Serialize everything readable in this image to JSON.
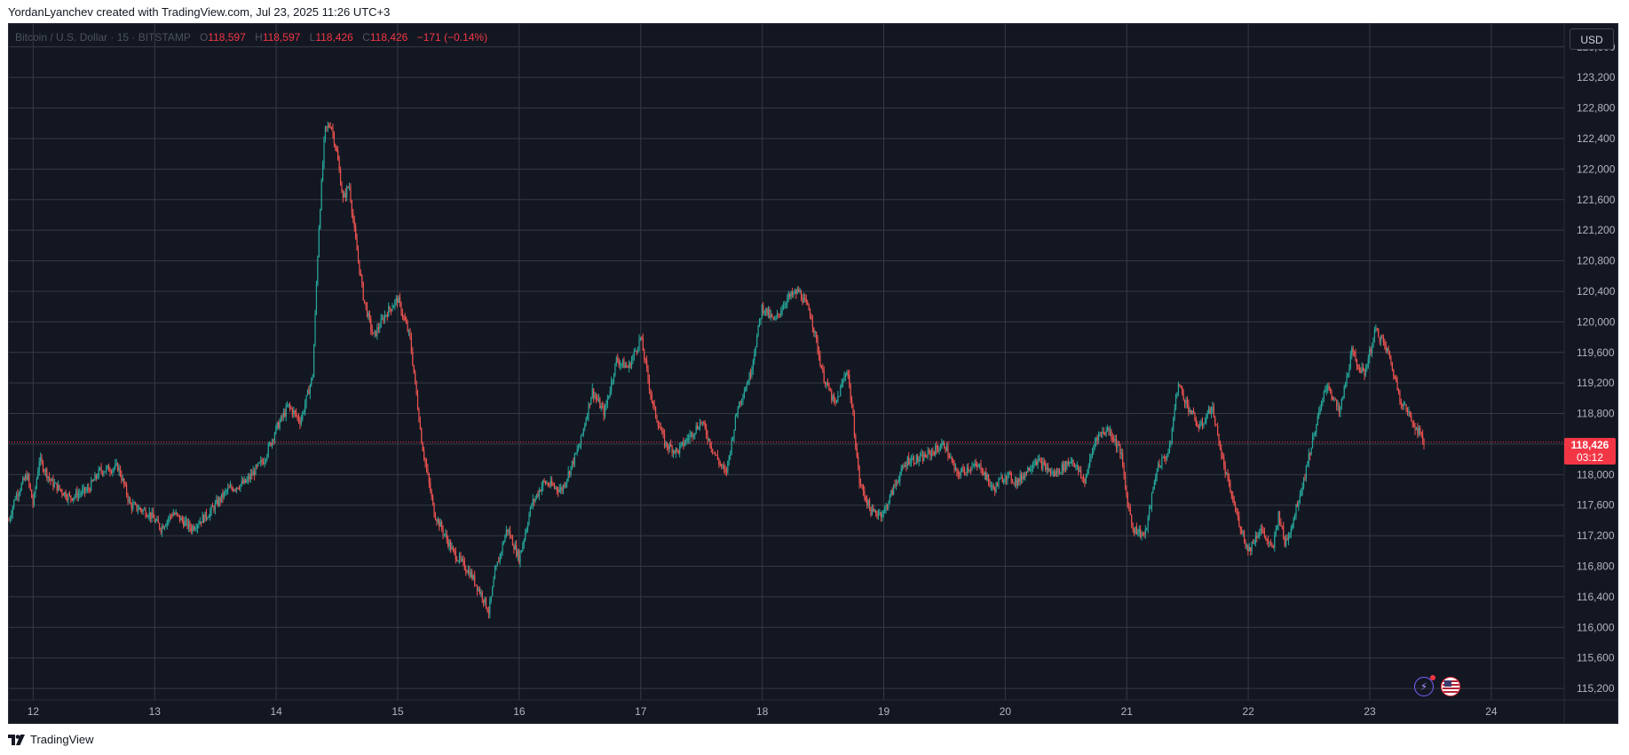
{
  "header": {
    "attribution": "YordanLyanchev created with TradingView.com, Jul 23, 2025 11:26 UTC+3"
  },
  "legend": {
    "symbol": "Bitcoin / U.S. Dollar · 15 · BITSTAMP",
    "open_key": "O",
    "open": "118,597",
    "high_key": "H",
    "high": "118,597",
    "low_key": "L",
    "low": "118,426",
    "close_key": "C",
    "close": "118,426",
    "change": "−171 (−0.14%)"
  },
  "currency_button": "USD",
  "last_price": {
    "value": "118,426",
    "countdown": "03:12"
  },
  "footer": {
    "brand": "TradingView"
  },
  "icons": [
    "events-icon",
    "us-flag-icon"
  ],
  "colors": {
    "background": "#131722",
    "up": "#26a69a",
    "down": "#ef5350",
    "price_line": "#f23645",
    "grid": "#363a45",
    "text": "#b2b5be"
  },
  "chart_data": {
    "type": "candlestick",
    "timeframe": "15",
    "exchange": "BITSTAMP",
    "x_tick_labels": [
      "12",
      "13",
      "14",
      "15",
      "16",
      "17",
      "18",
      "19",
      "20",
      "21",
      "22",
      "23",
      "24"
    ],
    "y_tick_labels": [
      "123,600",
      "123,200",
      "122,800",
      "122,400",
      "122,000",
      "121,600",
      "121,200",
      "120,800",
      "120,400",
      "120,000",
      "119,600",
      "119,200",
      "118,800",
      "118,000",
      "117,600",
      "117,200",
      "116,800",
      "116,400",
      "116,000",
      "115,600",
      "115,200"
    ],
    "y_ticks": [
      123600,
      123200,
      122800,
      122400,
      122000,
      121600,
      121200,
      120800,
      120400,
      120000,
      119600,
      119200,
      118800,
      118400,
      118000,
      117600,
      117200,
      116800,
      116400,
      116000,
      115600,
      115200
    ],
    "x_range": [
      11.8,
      24.6
    ],
    "ylim": [
      115050,
      123900
    ],
    "last_price": 118426,
    "grid": true,
    "price_path": [
      [
        11.8,
        117400
      ],
      [
        11.85,
        117700
      ],
      [
        11.95,
        118000
      ],
      [
        12.0,
        117600
      ],
      [
        12.05,
        118200
      ],
      [
        12.15,
        117900
      ],
      [
        12.3,
        117700
      ],
      [
        12.45,
        117800
      ],
      [
        12.55,
        118050
      ],
      [
        12.7,
        118100
      ],
      [
        12.8,
        117600
      ],
      [
        12.95,
        117500
      ],
      [
        13.05,
        117300
      ],
      [
        13.15,
        117500
      ],
      [
        13.3,
        117300
      ],
      [
        13.45,
        117500
      ],
      [
        13.6,
        117800
      ],
      [
        13.75,
        117900
      ],
      [
        13.9,
        118200
      ],
      [
        14.0,
        118600
      ],
      [
        14.1,
        118900
      ],
      [
        14.2,
        118700
      ],
      [
        14.3,
        119300
      ],
      [
        14.35,
        121200
      ],
      [
        14.4,
        122500
      ],
      [
        14.45,
        122600
      ],
      [
        14.5,
        122200
      ],
      [
        14.55,
        121600
      ],
      [
        14.6,
        121800
      ],
      [
        14.65,
        121100
      ],
      [
        14.72,
        120300
      ],
      [
        14.8,
        119800
      ],
      [
        14.9,
        120100
      ],
      [
        15.0,
        120300
      ],
      [
        15.1,
        119800
      ],
      [
        15.2,
        118400
      ],
      [
        15.3,
        117500
      ],
      [
        15.45,
        117000
      ],
      [
        15.6,
        116700
      ],
      [
        15.7,
        116400
      ],
      [
        15.75,
        116200
      ],
      [
        15.8,
        116700
      ],
      [
        15.9,
        117300
      ],
      [
        16.0,
        116900
      ],
      [
        16.1,
        117600
      ],
      [
        16.2,
        117900
      ],
      [
        16.35,
        117800
      ],
      [
        16.5,
        118400
      ],
      [
        16.6,
        119100
      ],
      [
        16.7,
        118800
      ],
      [
        16.8,
        119500
      ],
      [
        16.9,
        119400
      ],
      [
        17.0,
        119800
      ],
      [
        17.1,
        118900
      ],
      [
        17.2,
        118400
      ],
      [
        17.3,
        118300
      ],
      [
        17.4,
        118500
      ],
      [
        17.5,
        118700
      ],
      [
        17.6,
        118300
      ],
      [
        17.7,
        118000
      ],
      [
        17.8,
        118900
      ],
      [
        17.9,
        119300
      ],
      [
        18.0,
        120200
      ],
      [
        18.1,
        120000
      ],
      [
        18.2,
        120300
      ],
      [
        18.3,
        120400
      ],
      [
        18.4,
        120100
      ],
      [
        18.5,
        119300
      ],
      [
        18.6,
        118900
      ],
      [
        18.7,
        119400
      ],
      [
        18.75,
        118700
      ],
      [
        18.8,
        117900
      ],
      [
        18.9,
        117500
      ],
      [
        19.0,
        117500
      ],
      [
        19.1,
        117900
      ],
      [
        19.2,
        118200
      ],
      [
        19.3,
        118200
      ],
      [
        19.4,
        118300
      ],
      [
        19.5,
        118400
      ],
      [
        19.6,
        118000
      ],
      [
        19.7,
        118100
      ],
      [
        19.8,
        118100
      ],
      [
        19.9,
        117800
      ],
      [
        20.0,
        118000
      ],
      [
        20.1,
        117900
      ],
      [
        20.25,
        118200
      ],
      [
        20.4,
        118000
      ],
      [
        20.55,
        118200
      ],
      [
        20.65,
        117900
      ],
      [
        20.75,
        118500
      ],
      [
        20.85,
        118600
      ],
      [
        20.95,
        118300
      ],
      [
        21.0,
        117700
      ],
      [
        21.05,
        117300
      ],
      [
        21.15,
        117200
      ],
      [
        21.25,
        118100
      ],
      [
        21.35,
        118300
      ],
      [
        21.42,
        119200
      ],
      [
        21.5,
        118900
      ],
      [
        21.6,
        118600
      ],
      [
        21.7,
        118900
      ],
      [
        21.8,
        118100
      ],
      [
        21.9,
        117500
      ],
      [
        22.0,
        117000
      ],
      [
        22.1,
        117300
      ],
      [
        22.2,
        117000
      ],
      [
        22.25,
        117500
      ],
      [
        22.3,
        117100
      ],
      [
        22.35,
        117300
      ],
      [
        22.45,
        117900
      ],
      [
        22.55,
        118600
      ],
      [
        22.65,
        119200
      ],
      [
        22.75,
        118800
      ],
      [
        22.85,
        119600
      ],
      [
        22.95,
        119300
      ],
      [
        23.05,
        119900
      ],
      [
        23.15,
        119600
      ],
      [
        23.25,
        119000
      ],
      [
        23.35,
        118700
      ],
      [
        23.45,
        118426
      ]
    ]
  }
}
